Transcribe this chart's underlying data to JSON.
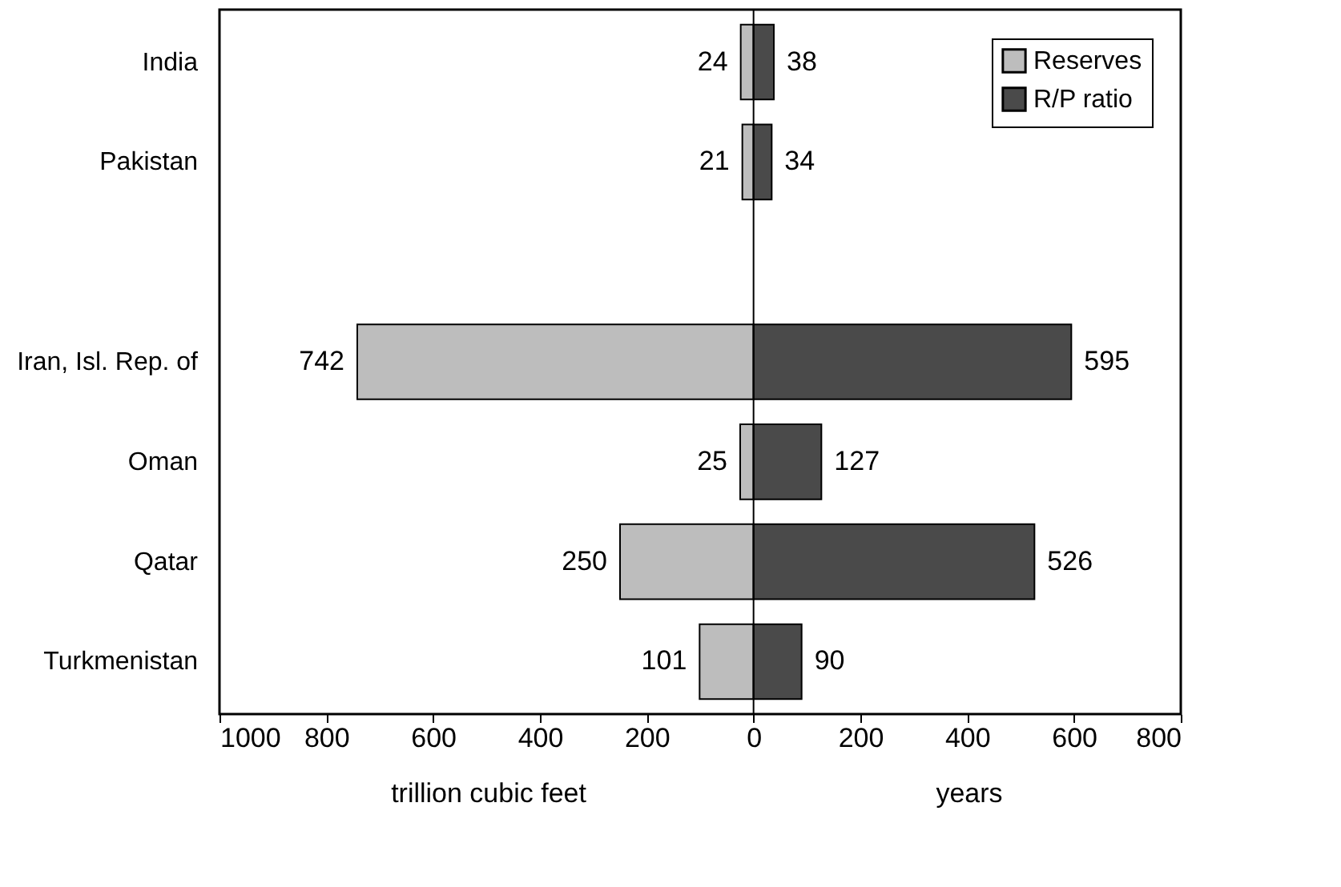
{
  "chart_data": {
    "type": "bar",
    "orientation": "horizontal",
    "categories": [
      "India",
      "Pakistan",
      null,
      "Iran, Isl. Rep. of",
      "Oman",
      "Qatar",
      "Turkmenistan"
    ],
    "series": [
      {
        "name": "Reserves",
        "color": "#bdbdbd",
        "values": [
          24,
          21,
          null,
          742,
          25,
          250,
          101
        ],
        "base": [
          -24,
          -21,
          null,
          -742,
          -25,
          -250,
          -101
        ],
        "value_labels": [
          "24",
          "21",
          null,
          "742",
          "25",
          "250",
          "101"
        ]
      },
      {
        "name": "R/P ratio",
        "color": "#4a4a4a",
        "values": [
          38,
          34,
          null,
          595,
          127,
          526,
          90
        ],
        "value_labels": [
          "38",
          "34",
          null,
          "595",
          "127",
          "526",
          "90"
        ]
      }
    ],
    "xlim": [
      -1000,
      800
    ],
    "xticks": [
      {
        "value": -1000,
        "label": "1000"
      },
      {
        "value": -800,
        "label": "800"
      },
      {
        "value": -600,
        "label": "600"
      },
      {
        "value": -400,
        "label": "400"
      },
      {
        "value": -200,
        "label": "200"
      },
      0,
      200,
      400,
      600,
      800
    ],
    "xlabel": "trillion cubic feet",
    "annotations": [
      "years"
    ],
    "ref_lines": [
      {
        "axis": "x",
        "value": 0,
        "color": "#000000"
      }
    ],
    "legend": "top right",
    "grid": false
  }
}
